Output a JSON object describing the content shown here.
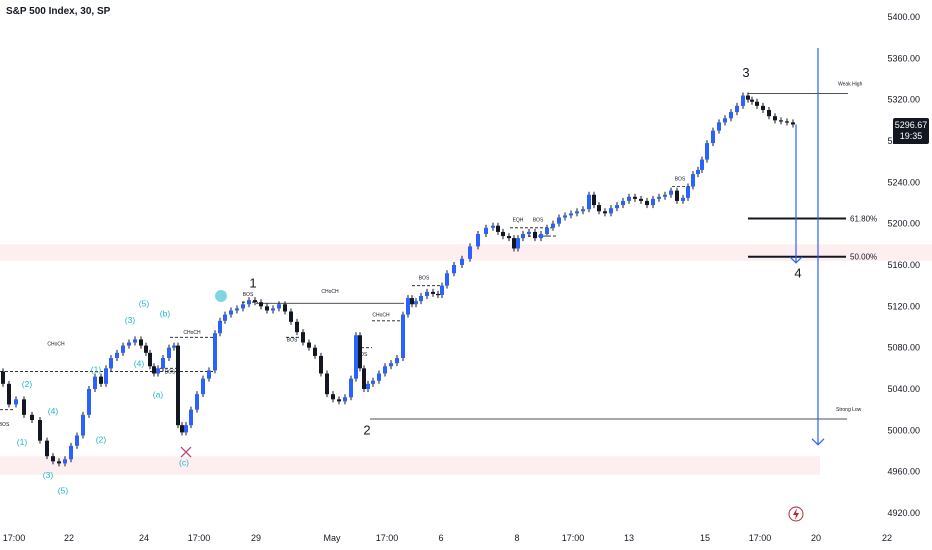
{
  "title": "S&P 500 Index, 30, SP",
  "last_price": "5296.67",
  "countdown": "19:35",
  "chart_data": {
    "type": "candlestick",
    "title": "S&P 500 Index, 30, SP",
    "y_ticks": [
      5400.0,
      5360.0,
      5320.0,
      5280.0,
      5240.0,
      5200.0,
      5160.0,
      5120.0,
      5080.0,
      5040.0,
      5000.0,
      4960.0,
      4920.0
    ],
    "y_range": [
      4914,
      5416
    ],
    "x_ticks": [
      "17:00",
      "22",
      "24",
      "17:00",
      "29",
      "May",
      "17:00",
      "6",
      "8",
      "17:00",
      "13",
      "15",
      "17:00",
      "20",
      "22"
    ],
    "price_path": [
      [
        0,
        5057
      ],
      [
        6,
        5045
      ],
      [
        12,
        5025
      ],
      [
        20,
        5030
      ],
      [
        28,
        5015
      ],
      [
        36,
        5010
      ],
      [
        44,
        4990
      ],
      [
        50,
        4975
      ],
      [
        56,
        4970
      ],
      [
        62,
        4968
      ],
      [
        68,
        4972
      ],
      [
        74,
        4985
      ],
      [
        80,
        4995
      ],
      [
        86,
        5015
      ],
      [
        92,
        5040
      ],
      [
        98,
        5052
      ],
      [
        104,
        5045
      ],
      [
        108,
        5060
      ],
      [
        114,
        5070
      ],
      [
        120,
        5075
      ],
      [
        126,
        5082
      ],
      [
        132,
        5085
      ],
      [
        138,
        5088
      ],
      [
        144,
        5082
      ],
      [
        148,
        5075
      ],
      [
        152,
        5062
      ],
      [
        156,
        5055
      ],
      [
        160,
        5060
      ],
      [
        166,
        5070
      ],
      [
        172,
        5080
      ],
      [
        176,
        5082
      ],
      [
        180,
        5005
      ],
      [
        184,
        4998
      ],
      [
        188,
        5005
      ],
      [
        194,
        5020
      ],
      [
        200,
        5035
      ],
      [
        206,
        5050
      ],
      [
        212,
        5058
      ],
      [
        218,
        5094
      ],
      [
        222,
        5106
      ],
      [
        228,
        5112
      ],
      [
        234,
        5116
      ],
      [
        240,
        5118
      ],
      [
        246,
        5122
      ],
      [
        252,
        5126
      ],
      [
        258,
        5124
      ],
      [
        264,
        5120
      ],
      [
        270,
        5116
      ],
      [
        276,
        5118
      ],
      [
        282,
        5122
      ],
      [
        288,
        5115
      ],
      [
        294,
        5105
      ],
      [
        300,
        5095
      ],
      [
        306,
        5085
      ],
      [
        312,
        5080
      ],
      [
        318,
        5072
      ],
      [
        324,
        5055
      ],
      [
        330,
        5035
      ],
      [
        336,
        5030
      ],
      [
        342,
        5028
      ],
      [
        348,
        5032
      ],
      [
        354,
        5050
      ],
      [
        358,
        5092
      ],
      [
        362,
        5060
      ],
      [
        366,
        5040
      ],
      [
        370,
        5045
      ],
      [
        376,
        5048
      ],
      [
        382,
        5055
      ],
      [
        388,
        5062
      ],
      [
        394,
        5065
      ],
      [
        400,
        5070
      ],
      [
        406,
        5112
      ],
      [
        410,
        5128
      ],
      [
        414,
        5122
      ],
      [
        418,
        5125
      ],
      [
        424,
        5130
      ],
      [
        430,
        5134
      ],
      [
        436,
        5132
      ],
      [
        440,
        5131
      ],
      [
        444,
        5140
      ],
      [
        450,
        5152
      ],
      [
        458,
        5160
      ],
      [
        466,
        5166
      ],
      [
        474,
        5178
      ],
      [
        482,
        5190
      ],
      [
        490,
        5196
      ],
      [
        496,
        5198
      ],
      [
        500,
        5192
      ],
      [
        506,
        5188
      ],
      [
        512,
        5186
      ],
      [
        516,
        5176
      ],
      [
        520,
        5186
      ],
      [
        526,
        5190
      ],
      [
        532,
        5192
      ],
      [
        538,
        5186
      ],
      [
        544,
        5190
      ],
      [
        550,
        5196
      ],
      [
        556,
        5200
      ],
      [
        562,
        5206
      ],
      [
        568,
        5208
      ],
      [
        574,
        5210
      ],
      [
        580,
        5212
      ],
      [
        586,
        5214
      ],
      [
        592,
        5228
      ],
      [
        596,
        5218
      ],
      [
        602,
        5212
      ],
      [
        608,
        5210
      ],
      [
        614,
        5215
      ],
      [
        620,
        5218
      ],
      [
        626,
        5222
      ],
      [
        632,
        5226
      ],
      [
        638,
        5224
      ],
      [
        644,
        5222
      ],
      [
        650,
        5218
      ],
      [
        656,
        5224
      ],
      [
        662,
        5226
      ],
      [
        668,
        5228
      ],
      [
        674,
        5232
      ],
      [
        680,
        5222
      ],
      [
        686,
        5225
      ],
      [
        690,
        5236
      ],
      [
        696,
        5248
      ],
      [
        700,
        5252
      ],
      [
        704,
        5262
      ],
      [
        710,
        5278
      ],
      [
        716,
        5290
      ],
      [
        722,
        5298
      ],
      [
        728,
        5302
      ],
      [
        734,
        5308
      ],
      [
        740,
        5314
      ],
      [
        746,
        5324
      ],
      [
        750,
        5320
      ],
      [
        754,
        5318
      ],
      [
        760,
        5314
      ],
      [
        766,
        5310
      ],
      [
        772,
        5304
      ],
      [
        778,
        5300
      ],
      [
        784,
        5299
      ],
      [
        790,
        5298
      ],
      [
        796,
        5296
      ]
    ],
    "levels": [
      {
        "label": "Weak High",
        "price": 5326
      },
      {
        "label": "61.80%",
        "price": 5205
      },
      {
        "label": "50.00%",
        "price": 5168
      },
      {
        "label": "Strong Low",
        "price": 5011
      }
    ],
    "structure_labels": [
      "CHoCH",
      "CHoCH",
      "CHoCH",
      "CHoCH",
      "BOS",
      "BOS",
      "BOS",
      "BOS",
      "BOS",
      "EQH",
      "BOS",
      "BOS",
      "BOS"
    ],
    "waves_major": [
      "1",
      "2",
      "3",
      "4"
    ],
    "waves_minor": [
      "(1)",
      "(2)",
      "(3)",
      "(4)",
      "(5)",
      "(1)",
      "(2)",
      "(3)",
      "(4)",
      "(5)",
      "(a)",
      "(b)",
      "(c)"
    ],
    "zones": [
      {
        "top": 5180,
        "bottom": 5164
      },
      {
        "top": 4975,
        "bottom": 4957
      }
    ]
  }
}
